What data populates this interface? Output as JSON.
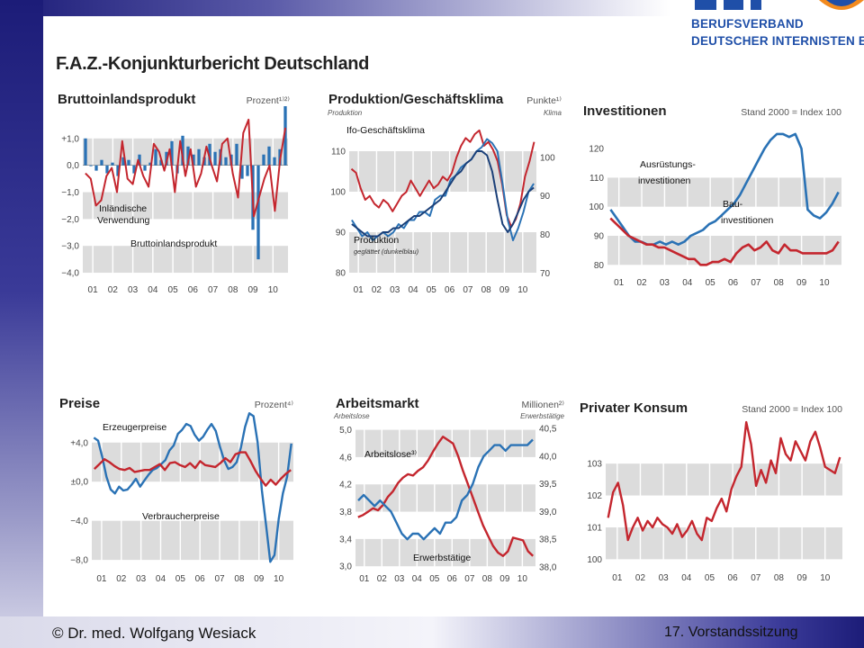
{
  "page": {
    "title": "F.A.Z.-Konjunkturbericht Deutschland"
  },
  "logo": {
    "line1": "BERUFSVERBAND",
    "line2": "DEUTSCHER INTERNISTEN E.V.",
    "mark_text": "BDI"
  },
  "footer": {
    "left": "© Dr. med. Wolfgang Wesiack",
    "right": "17. Vorstandssitzung"
  },
  "colors": {
    "red": "#c4262e",
    "blue": "#2a72b5",
    "band": "#dcdcdc",
    "frame": "#ffffff"
  },
  "chart_data": [
    {
      "id": "bip",
      "type": "bar+line",
      "title": "Bruttoinlandsprodukt",
      "unit": "Prozent¹⁾²⁾",
      "x_ticks": [
        "01",
        "02",
        "03",
        "04",
        "05",
        "06",
        "07",
        "08",
        "09",
        "10"
      ],
      "y_ticks": [
        1.0,
        0.0,
        -1.0,
        -2.0,
        -3.0,
        -4.0
      ],
      "y_tick_labels": [
        "+1,0",
        "0,0",
        "−1,0",
        "−2,0",
        "−3,0",
        "−4,0"
      ],
      "ylim": [
        -4.3,
        2.2
      ],
      "xlim": [
        2000.5,
        2010.75
      ],
      "series": [
        {
          "name": "Bruttoinlandsprodukt",
          "color": "#2a72b5",
          "kind": "bar",
          "values": [
            1.0,
            0.0,
            -0.2,
            0.2,
            -0.3,
            0.1,
            -0.4,
            0.3,
            0.2,
            -0.3,
            0.4,
            -0.2,
            0.1,
            0.6,
            0.2,
            0.5,
            0.9,
            -0.3,
            1.1,
            0.7,
            0.4,
            0.6,
            0.3,
            0.8,
            0.5,
            0.6,
            0.3,
            0.4,
            0.8,
            -0.5,
            -0.4,
            -2.4,
            -3.5,
            0.4,
            0.7,
            0.3,
            0.6,
            2.2
          ]
        },
        {
          "name": "Inländische Verwendung",
          "color": "#c4262e",
          "kind": "line",
          "values": [
            -0.3,
            -0.5,
            -1.5,
            -1.3,
            -0.4,
            -0.1,
            -1.0,
            0.9,
            -0.5,
            -0.7,
            0.2,
            -0.4,
            -0.8,
            0.8,
            0.5,
            -0.2,
            0.6,
            -1.0,
            0.9,
            -0.4,
            0.6,
            -0.8,
            -0.3,
            0.7,
            0.0,
            -0.6,
            0.8,
            1.0,
            -0.3,
            -1.2,
            1.2,
            1.7,
            -1.9,
            -1.2,
            -0.5,
            0.0,
            -1.7,
            0.2,
            1.4
          ]
        }
      ],
      "annotations": [
        "Inländische",
        "Verwendung",
        "Bruttoinlandsprodukt"
      ]
    },
    {
      "id": "produktion",
      "type": "line-dual-axis",
      "title": "Produktion/Geschäftsklima",
      "unit": "Punkte¹⁾",
      "left_axis_label": "Produktion",
      "right_axis_label": "Klima",
      "x_ticks": [
        "01",
        "02",
        "03",
        "04",
        "05",
        "06",
        "07",
        "08",
        "09",
        "10"
      ],
      "y_left_ticks": [
        110,
        100,
        90,
        80
      ],
      "y_right_ticks": [
        100,
        90,
        80,
        70
      ],
      "ylim_left": [
        78,
        118
      ],
      "ylim_right": [
        68,
        110
      ],
      "xlim": [
        2000.5,
        2010.75
      ],
      "series": [
        {
          "name": "Ifo-Geschäftsklima",
          "color": "#c4262e",
          "axis": "right",
          "values": [
            97,
            96,
            92,
            89,
            90,
            88,
            87,
            89,
            88,
            86,
            88,
            90,
            91,
            94,
            92,
            90,
            92,
            94,
            92,
            93,
            95,
            94,
            96,
            100,
            103,
            105,
            104,
            106,
            107,
            103,
            104,
            102,
            99,
            93,
            85,
            82,
            84,
            88,
            95,
            99,
            104
          ]
        },
        {
          "name": "Produktion",
          "color": "#2a72b5",
          "axis": "left",
          "values": [
            93,
            91,
            89,
            90,
            88,
            89,
            90,
            89,
            90,
            92,
            91,
            93,
            93,
            95,
            95,
            94,
            98,
            99,
            99,
            103,
            104,
            106,
            107,
            108,
            110,
            111,
            113,
            112,
            110,
            102,
            93,
            88,
            91,
            95,
            100,
            102
          ]
        },
        {
          "name": "Produktion (geglättet)",
          "color": "#1a3f78",
          "axis": "left",
          "values": [
            92,
            91,
            90,
            89,
            89,
            89,
            90,
            90,
            91,
            91,
            92,
            93,
            94,
            94,
            95,
            96,
            97,
            98,
            100,
            102,
            104,
            105,
            107,
            108,
            110,
            110,
            109,
            105,
            98,
            92,
            90,
            92,
            95,
            98,
            100,
            101
          ]
        }
      ],
      "annotations": [
        "Ifo-Geschäftsklima",
        "Produktion",
        "geglättet (dunkelblau)"
      ]
    },
    {
      "id": "investitionen",
      "type": "line",
      "title": "Investitionen",
      "unit": "Stand 2000 = Index 100",
      "x_ticks": [
        "01",
        "02",
        "03",
        "04",
        "05",
        "06",
        "07",
        "08",
        "09",
        "10"
      ],
      "y_ticks": [
        120,
        110,
        100,
        90,
        80
      ],
      "ylim": [
        77,
        129
      ],
      "xlim": [
        2000.5,
        2010.75
      ],
      "series": [
        {
          "name": "Ausrüstungsinvestitionen",
          "color": "#2a72b5",
          "values": [
            99,
            96,
            93,
            90,
            88,
            88,
            87,
            87,
            88,
            87,
            88,
            87,
            88,
            90,
            91,
            92,
            94,
            95,
            97,
            99,
            101,
            104,
            108,
            112,
            116,
            120,
            123,
            125,
            125,
            124,
            125,
            120,
            99,
            97,
            96,
            98,
            101,
            105
          ]
        },
        {
          "name": "Bauinvestitionen",
          "color": "#c4262e",
          "values": [
            96,
            94,
            92,
            90,
            89,
            88,
            87,
            87,
            86,
            86,
            85,
            84,
            83,
            82,
            82,
            80,
            80,
            81,
            81,
            82,
            81,
            84,
            86,
            87,
            85,
            86,
            88,
            85,
            84,
            87,
            85,
            85,
            84,
            84,
            84,
            84,
            84,
            85,
            88
          ]
        }
      ],
      "annotations": [
        "Ausrüstungs-",
        "investitionen",
        "Bau-",
        "investitionen"
      ]
    },
    {
      "id": "preise",
      "type": "line",
      "title": "Preise",
      "unit": "Prozent⁴⁾",
      "x_ticks": [
        "01",
        "02",
        "03",
        "04",
        "05",
        "06",
        "07",
        "08",
        "09",
        "10"
      ],
      "y_ticks": [
        4.0,
        0.0,
        -4.0,
        -8.0
      ],
      "y_tick_labels": [
        "+4,0",
        "±0,0",
        "−4,0",
        "−8,0"
      ],
      "ylim": [
        -9,
        7.2
      ],
      "xlim": [
        2000.5,
        2010.75
      ],
      "series": [
        {
          "name": "Erzeugerpreise",
          "color": "#2a72b5",
          "values": [
            4.5,
            4.2,
            2.5,
            0.5,
            -0.8,
            -1.2,
            -0.5,
            -0.9,
            -0.8,
            -0.3,
            0.3,
            -0.5,
            0.1,
            0.7,
            1.2,
            1.4,
            1.8,
            2.2,
            3.2,
            3.7,
            4.9,
            5.3,
            5.9,
            5.7,
            4.8,
            4.2,
            4.6,
            5.3,
            5.9,
            5.2,
            3.6,
            2.2,
            1.3,
            1.5,
            2.0,
            3.5,
            5.6,
            7.0,
            6.7,
            4.0,
            -0.9,
            -4.5,
            -8.2,
            -7.5,
            -3.8,
            -1.2,
            0.5,
            3.9
          ]
        },
        {
          "name": "Verbraucherpreise",
          "color": "#c4262e",
          "values": [
            1.3,
            1.8,
            2.3,
            2.0,
            1.6,
            1.3,
            1.2,
            1.4,
            1.0,
            1.1,
            1.2,
            1.2,
            1.5,
            1.8,
            1.2,
            1.9,
            2.0,
            1.7,
            1.5,
            1.9,
            1.4,
            2.1,
            1.7,
            1.6,
            1.5,
            1.9,
            2.4,
            2.0,
            2.8,
            3.0,
            3.0,
            2.1,
            1.1,
            0.3,
            -0.4,
            0.2,
            -0.3,
            0.3,
            0.8,
            1.2
          ]
        }
      ],
      "annotations": [
        "Erzeugerpreise",
        "Verbraucherpreise"
      ]
    },
    {
      "id": "arbeitsmarkt",
      "type": "line-dual-axis",
      "title": "Arbeitsmarkt",
      "unit": "Millionen²⁾",
      "left_axis_label": "Arbeitslose",
      "right_axis_label": "Erwerbstätige",
      "x_ticks": [
        "01",
        "02",
        "03",
        "04",
        "05",
        "06",
        "07",
        "08",
        "09",
        "10"
      ],
      "y_left_ticks": [
        "5,0",
        "4,6",
        "4,2",
        "3,8",
        "3,4",
        "3,0"
      ],
      "y_left_values": [
        5.0,
        4.6,
        4.2,
        3.8,
        3.4,
        3.0
      ],
      "y_right_ticks": [
        "40,5",
        "40,0",
        "39,5",
        "39,0",
        "38,5",
        "38,0"
      ],
      "y_right_values": [
        40.5,
        40.0,
        39.5,
        39.0,
        38.5,
        38.0
      ],
      "ylim_left": [
        2.95,
        5.1
      ],
      "ylim_right": [
        37.95,
        40.6
      ],
      "xlim": [
        2000.5,
        2010.75
      ],
      "series": [
        {
          "name": "Arbeitslose",
          "color": "#c4262e",
          "axis": "left",
          "values": [
            3.72,
            3.75,
            3.8,
            3.85,
            3.82,
            3.9,
            4.02,
            4.1,
            4.22,
            4.3,
            4.35,
            4.33,
            4.4,
            4.45,
            4.55,
            4.68,
            4.8,
            4.9,
            4.85,
            4.8,
            4.62,
            4.4,
            4.2,
            4.0,
            3.8,
            3.6,
            3.45,
            3.3,
            3.2,
            3.15,
            3.22,
            3.42,
            3.4,
            3.38,
            3.22,
            3.15
          ]
        },
        {
          "name": "Erwerbstätige",
          "color": "#2a72b5",
          "axis": "right",
          "values": [
            39.2,
            39.3,
            39.2,
            39.1,
            39.2,
            39.1,
            39.0,
            38.8,
            38.6,
            38.5,
            38.6,
            38.6,
            38.5,
            38.6,
            38.7,
            38.6,
            38.8,
            38.8,
            38.9,
            39.2,
            39.3,
            39.5,
            39.8,
            40.0,
            40.1,
            40.2,
            40.2,
            40.1,
            40.2,
            40.2,
            40.2,
            40.2,
            40.3
          ]
        }
      ],
      "annotations": [
        "Arbeitslose³⁾",
        "Erwerbstätige"
      ]
    },
    {
      "id": "konsum",
      "type": "line",
      "title": "Privater Konsum",
      "unit": "Stand 2000 = Index 100",
      "x_ticks": [
        "01",
        "02",
        "03",
        "04",
        "05",
        "06",
        "07",
        "08",
        "09",
        "10"
      ],
      "y_ticks": [
        103,
        102,
        101,
        100
      ],
      "ylim": [
        99.7,
        104.5
      ],
      "xlim": [
        2000.5,
        2010.75
      ],
      "series": [
        {
          "name": "Privater Konsum",
          "color": "#c4262e",
          "values": [
            101.3,
            102.1,
            102.4,
            101.7,
            100.6,
            101.0,
            101.3,
            100.9,
            101.2,
            101.0,
            101.3,
            101.1,
            101.0,
            100.8,
            101.1,
            100.7,
            100.9,
            101.2,
            100.8,
            100.6,
            101.3,
            101.2,
            101.6,
            101.9,
            101.5,
            102.2,
            102.6,
            102.9,
            104.3,
            103.6,
            102.3,
            102.8,
            102.4,
            103.1,
            102.7,
            103.8,
            103.3,
            103.1,
            103.7,
            103.4,
            103.1,
            103.7,
            104.0,
            103.5,
            102.9,
            102.8,
            102.7,
            103.2
          ]
        }
      ]
    }
  ]
}
